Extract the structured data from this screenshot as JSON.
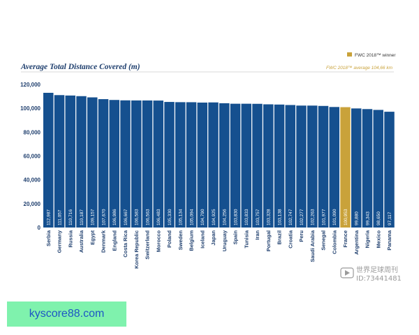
{
  "chart_data": {
    "type": "bar",
    "title": "Average Total Distance Covered (m)",
    "legend": {
      "label": "FWC 2018™ winner",
      "color": "#c9a23a",
      "placement": "top-right"
    },
    "average_note": "FWC 2018™ average 104,66 km",
    "categories": [
      "Serbia",
      "Germany",
      "Russia",
      "Australia",
      "Egypt",
      "Denmark",
      "England",
      "Costa Rica",
      "Korea Republic",
      "Switzerland",
      "Morocco",
      "Poland",
      "Sweden",
      "Belgium",
      "Iceland",
      "Japan",
      "Uruguay",
      "Spain",
      "Tunisia",
      "Iran",
      "Portugal",
      "Brazil",
      "Croatia",
      "Peru",
      "Saudi Arabia",
      "Senegal",
      "Colombia",
      "France",
      "Argentina",
      "Nigeria",
      "Mexico",
      "Panama"
    ],
    "values": [
      112987,
      111057,
      110716,
      110187,
      109157,
      107670,
      106986,
      106667,
      106583,
      106563,
      106483,
      105330,
      105134,
      105094,
      104790,
      104925,
      104256,
      103830,
      103833,
      103757,
      103328,
      103138,
      102747,
      102277,
      102263,
      101977,
      101090,
      100953,
      99880,
      99343,
      98650,
      97117
    ],
    "value_labels": [
      "112,987",
      "111,057",
      "110,716",
      "110,187",
      "109,157",
      "107,670",
      "106,986",
      "106,667",
      "106,583",
      "106,563",
      "106,483",
      "105,330",
      "105,134",
      "105,094",
      "104,790",
      "104,925",
      "104,256",
      "103,830",
      "103,833",
      "103,757",
      "103,328",
      "103,138",
      "102,747",
      "102,277",
      "102,263",
      "101,977",
      "101,090",
      "100,953",
      "99,880",
      "99,343",
      "98,650",
      "97,117"
    ],
    "highlight": "France",
    "ylim": [
      0,
      120000
    ],
    "yticks": [
      0,
      20000,
      40000,
      60000,
      80000,
      100000,
      120000
    ],
    "ytick_labels": [
      "0",
      "20,000",
      "40,000",
      "60,000",
      "80,000",
      "100,000",
      "120,000"
    ],
    "colors": {
      "bar": "#15508f",
      "highlight": "#c9a23a",
      "text": "#1f3f6e",
      "grid": "#dddddd"
    },
    "grid": false,
    "xlabel": "",
    "ylabel": ""
  },
  "watermark": {
    "line1": "世界足球周刊",
    "line2": "ID:73441481",
    "icon": "play-logo-icon"
  },
  "banner": {
    "text": "kyscore88.com"
  }
}
